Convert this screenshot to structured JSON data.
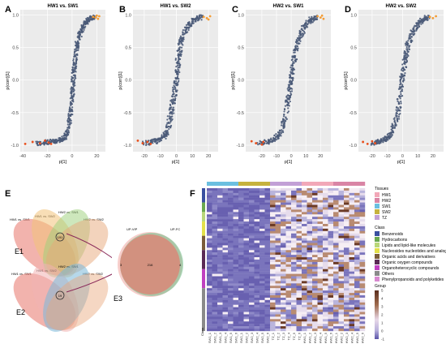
{
  "chart_data": [
    {
      "panel": "A",
      "type": "scatter",
      "title": "HW1 vs. SW1",
      "xlabel": "p[1]",
      "ylabel": "p(corr)[1]",
      "xticks": [
        -40,
        -20,
        0,
        20
      ],
      "xlim": [
        -42,
        27
      ],
      "yticks": [
        -1.0,
        -0.5,
        0.0,
        0.5,
        1.0
      ],
      "ylim": [
        -1.1,
        1.08
      ],
      "series": [
        {
          "color": "#4a5a78",
          "values": [
            [
              -30,
              -0.98
            ],
            [
              -22,
              -0.96
            ],
            [
              -18,
              -0.95
            ],
            [
              -14,
              -0.94
            ],
            [
              -10,
              -0.92
            ],
            [
              -7,
              -0.9
            ],
            [
              -5,
              -0.85
            ],
            [
              -3,
              -0.75
            ],
            [
              -2,
              -0.6
            ],
            [
              -1,
              -0.45
            ],
            [
              0,
              -0.3
            ],
            [
              0.5,
              -0.15
            ],
            [
              1,
              0
            ],
            [
              1.5,
              0.12
            ],
            [
              2,
              0.25
            ],
            [
              3,
              0.4
            ],
            [
              4,
              0.55
            ],
            [
              6,
              0.68
            ],
            [
              8,
              0.78
            ],
            [
              10,
              0.86
            ],
            [
              13,
              0.92
            ],
            [
              16,
              0.95
            ],
            [
              18,
              0.97
            ]
          ]
        },
        {
          "color": "#e94e1b",
          "values": [
            [
              -38,
              -0.98
            ],
            [
              -32,
              -0.95
            ],
            [
              -26,
              -0.97
            ],
            [
              -22,
              -0.93
            ],
            [
              -19,
              -0.96
            ],
            [
              -17,
              -0.98
            ]
          ]
        },
        {
          "color": "#f39c34",
          "values": [
            [
              17,
              0.97
            ],
            [
              19,
              0.96
            ],
            [
              21,
              0.94
            ],
            [
              22,
              0.98
            ],
            [
              20,
              0.99
            ]
          ]
        }
      ]
    },
    {
      "panel": "B",
      "type": "scatter",
      "title": "HW1 vs. SW2",
      "xlabel": "p[1]",
      "ylabel": "p(corr)[1]",
      "xticks": [
        -20,
        -10,
        0,
        10,
        20
      ],
      "xlim": [
        -27,
        26
      ],
      "yticks": [
        -1.0,
        -0.5,
        0.0,
        0.5,
        1.0
      ],
      "ylim": [
        -1.1,
        1.08
      ],
      "series": [
        {
          "color": "#4a5a78",
          "values": [
            [
              -20,
              -0.97
            ],
            [
              -15,
              -0.95
            ],
            [
              -12,
              -0.93
            ],
            [
              -9,
              -0.9
            ],
            [
              -7,
              -0.85
            ],
            [
              -5,
              -0.76
            ],
            [
              -4,
              -0.6
            ],
            [
              -3,
              -0.45
            ],
            [
              -2,
              -0.3
            ],
            [
              -1,
              -0.15
            ],
            [
              0,
              0
            ],
            [
              0.5,
              0.15
            ],
            [
              1,
              0.3
            ],
            [
              2,
              0.45
            ],
            [
              3,
              0.6
            ],
            [
              5,
              0.72
            ],
            [
              7,
              0.82
            ],
            [
              10,
              0.9
            ],
            [
              13,
              0.95
            ],
            [
              16,
              0.97
            ]
          ]
        },
        {
          "color": "#e94e1b",
          "values": [
            [
              -24,
              -0.93
            ],
            [
              -21,
              -0.97
            ],
            [
              -18,
              -0.95
            ],
            [
              -16,
              -0.98
            ]
          ]
        },
        {
          "color": "#f39c34",
          "values": [
            [
              17,
              0.97
            ],
            [
              19,
              0.95
            ],
            [
              21,
              0.98
            ],
            [
              20,
              0.93
            ]
          ]
        }
      ]
    },
    {
      "panel": "C",
      "type": "scatter",
      "title": "HW2 vs. SW1",
      "xlabel": "p[1]",
      "ylabel": "p(corr)[1]",
      "xticks": [
        -20,
        -10,
        0,
        10,
        20
      ],
      "xlim": [
        -31,
        27
      ],
      "yticks": [
        -1.0,
        -0.5,
        0.0,
        0.5,
        1.0
      ],
      "ylim": [
        -1.1,
        1.08
      ],
      "series": [
        {
          "color": "#4a5a78",
          "values": [
            [
              -22,
              -0.97
            ],
            [
              -17,
              -0.95
            ],
            [
              -13,
              -0.92
            ],
            [
              -10,
              -0.88
            ],
            [
              -7,
              -0.8
            ],
            [
              -5,
              -0.65
            ],
            [
              -3,
              -0.45
            ],
            [
              -2,
              -0.3
            ],
            [
              -1,
              -0.15
            ],
            [
              0,
              0
            ],
            [
              1,
              0.15
            ],
            [
              2,
              0.3
            ],
            [
              3,
              0.45
            ],
            [
              5,
              0.6
            ],
            [
              7,
              0.72
            ],
            [
              9,
              0.82
            ],
            [
              12,
              0.9
            ],
            [
              15,
              0.95
            ],
            [
              17,
              0.97
            ]
          ]
        },
        {
          "color": "#e94e1b",
          "values": [
            [
              -27,
              -0.94
            ],
            [
              -24,
              -0.97
            ],
            [
              -20,
              -0.99
            ],
            [
              -19,
              -0.95
            ]
          ]
        },
        {
          "color": "#f39c34",
          "values": [
            [
              18,
              0.98
            ],
            [
              20,
              0.96
            ],
            [
              22,
              0.94
            ],
            [
              21,
              0.99
            ]
          ]
        }
      ]
    },
    {
      "panel": "D",
      "type": "scatter",
      "title": "HW2 vs. SW2",
      "xlabel": "p[1]",
      "ylabel": "p(corr)[1]",
      "xticks": [
        -20,
        -10,
        0,
        10,
        20
      ],
      "xlim": [
        -29,
        27
      ],
      "yticks": [
        -1.0,
        -0.5,
        0.0,
        0.5,
        1.0
      ],
      "ylim": [
        -1.1,
        1.08
      ],
      "series": [
        {
          "color": "#4a5a78",
          "values": [
            [
              -20,
              -0.97
            ],
            [
              -15,
              -0.95
            ],
            [
              -12,
              -0.92
            ],
            [
              -9,
              -0.88
            ],
            [
              -7,
              -0.8
            ],
            [
              -5,
              -0.68
            ],
            [
              -3,
              -0.5
            ],
            [
              -2,
              -0.3
            ],
            [
              -1,
              -0.1
            ],
            [
              0,
              0.05
            ],
            [
              1,
              0.2
            ],
            [
              2,
              0.35
            ],
            [
              3,
              0.5
            ],
            [
              5,
              0.62
            ],
            [
              7,
              0.74
            ],
            [
              9,
              0.83
            ],
            [
              12,
              0.9
            ],
            [
              15,
              0.95
            ],
            [
              17,
              0.97
            ]
          ]
        },
        {
          "color": "#e94e1b",
          "values": [
            [
              -26,
              -0.95
            ],
            [
              -23,
              -0.98
            ],
            [
              -20,
              -0.94
            ],
            [
              -18,
              -0.97
            ]
          ]
        },
        {
          "color": "#f39c34",
          "values": [
            [
              18,
              0.97
            ],
            [
              20,
              0.95
            ],
            [
              22,
              0.98
            ]
          ]
        }
      ]
    },
    {
      "panel": "F",
      "type": "heatmap",
      "columns": [
        "SW1_1",
        "SW1_2",
        "SW1_3",
        "SW1_4",
        "SW1_5",
        "SW1_6",
        "SW2_1",
        "SW2_2",
        "SW2_3",
        "SW2_4",
        "SW2_5",
        "SW2_6",
        "TZ_1",
        "TZ_2",
        "TZ_3",
        "TZ_4",
        "TZ_5",
        "TZ_6",
        "HW1_1",
        "HW1_2",
        "HW1_3",
        "HW1_4",
        "HW1_5",
        "HW1_6",
        "HW2_1",
        "HW2_2",
        "HW2_3",
        "HW2_4",
        "HW2_5",
        "HW2_6"
      ],
      "column_groups": [
        "SW1",
        "SW1",
        "SW1",
        "SW1",
        "SW1",
        "SW1",
        "SW2",
        "SW2",
        "SW2",
        "SW2",
        "SW2",
        "SW2",
        "TZ",
        "TZ",
        "TZ",
        "TZ",
        "TZ",
        "TZ",
        "HW1",
        "HW1",
        "HW1",
        "HW1",
        "HW1",
        "HW1",
        "HW2",
        "HW2",
        "HW2",
        "HW2",
        "HW2",
        "HW2"
      ],
      "row_class_label": "Class",
      "color_scale": {
        "min": -1,
        "max": 5,
        "ticks": [
          5,
          4,
          3,
          2,
          1,
          0,
          -1
        ]
      }
    }
  ],
  "panel_labels": [
    "A",
    "B",
    "C",
    "D",
    "E",
    "F"
  ],
  "venn": {
    "headers_top": [
      "HW1 vs. SW2",
      "HW2 vs. SW1",
      "HW1 vs. SW1",
      "HW2 vs. SW2"
    ],
    "headers_mid": [
      "HW1 vs. SW2",
      "HW2 vs. SW1",
      "HW1 vs. SW1",
      "HW2 vs. SW2"
    ],
    "e1": "E1",
    "e2": "E2",
    "e3": "E3",
    "e1_center": "191",
    "e2_center": "19",
    "e3_labels": [
      "UP-VIP",
      "UP-FC"
    ],
    "e3_values": {
      "left": "3",
      "center": "216",
      "right": "4"
    }
  },
  "legend": {
    "tissues_title": "Tissues",
    "tissues": [
      {
        "label": "HW1",
        "color": "#f2a8b8"
      },
      {
        "label": "HW2",
        "color": "#d985a5"
      },
      {
        "label": "SW1",
        "color": "#6bbfe0"
      },
      {
        "label": "SW2",
        "color": "#c6b23e"
      },
      {
        "label": "TZ",
        "color": "#c2a0d6"
      }
    ],
    "class_title": "Class",
    "classes": [
      {
        "label": "Benzenoids",
        "color": "#3a4fa0"
      },
      {
        "label": "Hydrocarbons",
        "color": "#6aa84f"
      },
      {
        "label": "Lipids and lipid-like molecules",
        "color": "#b9d77a"
      },
      {
        "label": "Nucleosides nucleotides and analogues",
        "color": "#e3e04a"
      },
      {
        "label": "Organic acids and derivatives",
        "color": "#7a5c3a"
      },
      {
        "label": "Organic oxygen compounds",
        "color": "#5b2a55"
      },
      {
        "label": "Organoheterocyclic compounds",
        "color": "#c040c0"
      },
      {
        "label": "Others",
        "color": "#8a8a8a"
      },
      {
        "label": "Phenylpropanoids and polyketides",
        "color": "#d889d0"
      }
    ],
    "group_title": "Group"
  }
}
